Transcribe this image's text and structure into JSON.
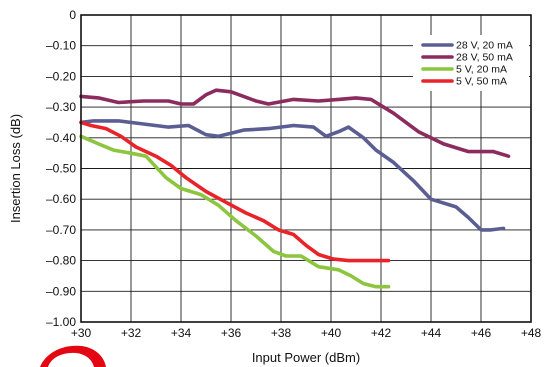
{
  "chart_data": {
    "type": "line",
    "xlabel": "Input Power (dBm)",
    "ylabel": "Insertion Loss (dB)",
    "xlim": [
      30,
      48
    ],
    "ylim": [
      -1.0,
      0
    ],
    "x_ticks": [
      30,
      32,
      34,
      36,
      38,
      40,
      42,
      44,
      46,
      48
    ],
    "x_tick_labels": [
      "+30",
      "+32",
      "+34",
      "+36",
      "+38",
      "+40",
      "+42",
      "+44",
      "+46",
      "+48"
    ],
    "y_ticks": [
      0,
      -0.1,
      -0.2,
      -0.3,
      -0.4,
      -0.5,
      -0.6,
      -0.7,
      -0.8,
      -0.9,
      -1.0
    ],
    "y_tick_labels": [
      "0",
      "–0.10",
      "–0.20",
      "–0.30",
      "–0.40",
      "–0.50",
      "–0.60",
      "–0.70",
      "–0.80",
      "–0.90",
      "–1.00"
    ],
    "grid": true,
    "legend_position": "top-right",
    "series": [
      {
        "name": "28 V, 20 mA",
        "color": "#5b5e93",
        "points": [
          [
            30,
            -0.35
          ],
          [
            30.5,
            -0.345
          ],
          [
            31.5,
            -0.345
          ],
          [
            32.5,
            -0.355
          ],
          [
            33.5,
            -0.365
          ],
          [
            34.3,
            -0.36
          ],
          [
            35,
            -0.39
          ],
          [
            35.5,
            -0.395
          ],
          [
            36,
            -0.385
          ],
          [
            36.5,
            -0.375
          ],
          [
            37.5,
            -0.37
          ],
          [
            38.5,
            -0.36
          ],
          [
            39.3,
            -0.365
          ],
          [
            39.8,
            -0.395
          ],
          [
            40.3,
            -0.38
          ],
          [
            40.7,
            -0.365
          ],
          [
            41.3,
            -0.4
          ],
          [
            41.8,
            -0.44
          ],
          [
            42.5,
            -0.48
          ],
          [
            43.3,
            -0.54
          ],
          [
            44,
            -0.6
          ],
          [
            45,
            -0.625
          ],
          [
            45.5,
            -0.66
          ],
          [
            46,
            -0.7
          ],
          [
            46.4,
            -0.7
          ],
          [
            46.9,
            -0.695
          ]
        ]
      },
      {
        "name": "28 V, 50 mA",
        "color": "#8c2c5e",
        "points": [
          [
            30,
            -0.265
          ],
          [
            30.7,
            -0.27
          ],
          [
            31.5,
            -0.285
          ],
          [
            32.5,
            -0.28
          ],
          [
            33.5,
            -0.28
          ],
          [
            34,
            -0.29
          ],
          [
            34.5,
            -0.29
          ],
          [
            35,
            -0.26
          ],
          [
            35.4,
            -0.245
          ],
          [
            36,
            -0.25
          ],
          [
            37,
            -0.28
          ],
          [
            37.5,
            -0.29
          ],
          [
            38.5,
            -0.275
          ],
          [
            39.5,
            -0.28
          ],
          [
            40.3,
            -0.275
          ],
          [
            41,
            -0.27
          ],
          [
            41.6,
            -0.275
          ],
          [
            42.5,
            -0.32
          ],
          [
            43.5,
            -0.38
          ],
          [
            44.5,
            -0.42
          ],
          [
            45.5,
            -0.445
          ],
          [
            46.5,
            -0.445
          ],
          [
            47.1,
            -0.46
          ]
        ]
      },
      {
        "name": "5 V, 20 mA",
        "color": "#8cc63f",
        "points": [
          [
            30,
            -0.395
          ],
          [
            30.7,
            -0.42
          ],
          [
            31.3,
            -0.44
          ],
          [
            32,
            -0.45
          ],
          [
            32.6,
            -0.46
          ],
          [
            33.4,
            -0.53
          ],
          [
            34,
            -0.565
          ],
          [
            34.8,
            -0.585
          ],
          [
            35.5,
            -0.62
          ],
          [
            36.2,
            -0.67
          ],
          [
            37,
            -0.72
          ],
          [
            37.7,
            -0.77
          ],
          [
            38.2,
            -0.785
          ],
          [
            38.8,
            -0.785
          ],
          [
            39.5,
            -0.82
          ],
          [
            40.3,
            -0.83
          ],
          [
            40.8,
            -0.85
          ],
          [
            41.3,
            -0.875
          ],
          [
            41.8,
            -0.885
          ],
          [
            42.3,
            -0.885
          ]
        ]
      },
      {
        "name": "5 V, 50 mA",
        "color": "#e8232a",
        "points": [
          [
            30,
            -0.35
          ],
          [
            30.4,
            -0.36
          ],
          [
            31,
            -0.37
          ],
          [
            31.6,
            -0.395
          ],
          [
            32.2,
            -0.43
          ],
          [
            33,
            -0.46
          ],
          [
            33.6,
            -0.49
          ],
          [
            34.2,
            -0.53
          ],
          [
            35,
            -0.575
          ],
          [
            35.8,
            -0.61
          ],
          [
            36.6,
            -0.645
          ],
          [
            37.3,
            -0.67
          ],
          [
            37.9,
            -0.7
          ],
          [
            38.5,
            -0.715
          ],
          [
            39,
            -0.75
          ],
          [
            39.5,
            -0.78
          ],
          [
            40.1,
            -0.795
          ],
          [
            40.7,
            -0.8
          ],
          [
            41.3,
            -0.8
          ],
          [
            42.3,
            -0.8
          ]
        ]
      }
    ]
  }
}
